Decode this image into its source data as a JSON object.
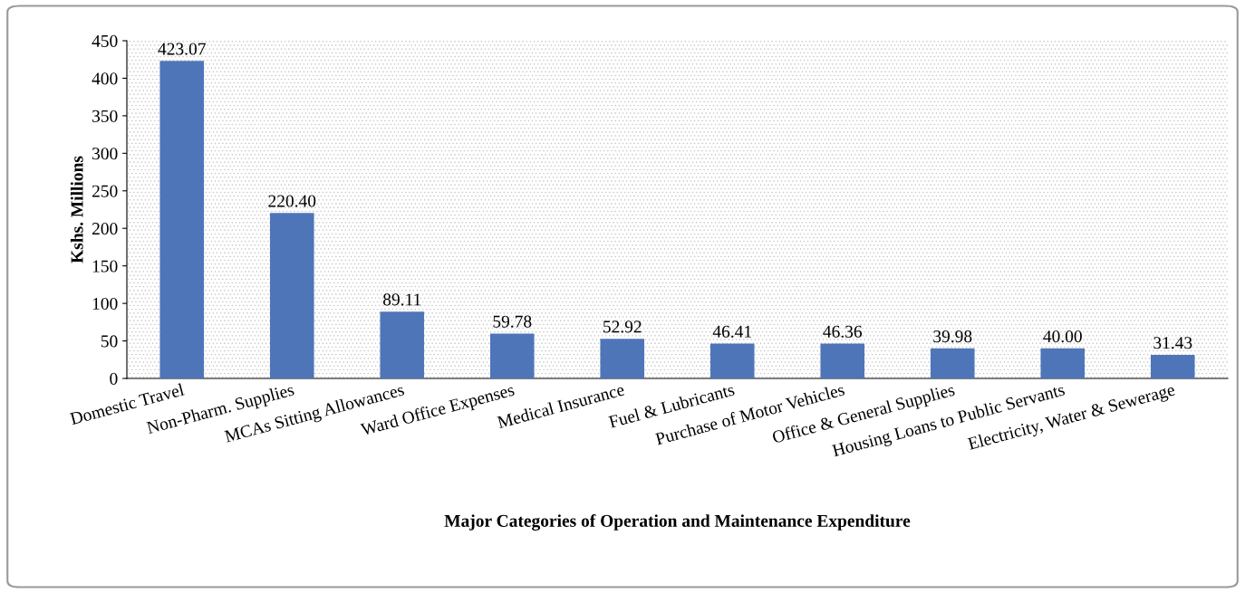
{
  "chart_data": {
    "type": "bar",
    "xlabel": "Major Categories of Operation and Maintenance Expenditure",
    "ylabel": "Kshs. Millions",
    "categories": [
      "Domestic Travel",
      "Non-Pharm. Supplies",
      "MCAs Sitting Allowances",
      "Ward Office Expenses",
      "Medical Insurance",
      "Fuel & Lubricants",
      "Purchase of Motor Vehicles",
      "Office & General Supplies",
      "Housing Loans to Public Servants",
      "Electricity, Water & Sewerage"
    ],
    "values": [
      423.07,
      220.4,
      89.11,
      59.78,
      52.92,
      46.41,
      46.36,
      39.98,
      40.0,
      31.43
    ],
    "value_labels": [
      "423.07",
      "220.40",
      "89.11",
      "59.78",
      "52.92",
      "46.41",
      "46.36",
      "39.98",
      "40.00",
      "31.43"
    ],
    "color": "#4f75b9",
    "ylim": [
      0,
      450
    ],
    "yticks": [
      0,
      50,
      100,
      150,
      200,
      250,
      300,
      350,
      400,
      450
    ],
    "grid": false,
    "legend": false
  }
}
